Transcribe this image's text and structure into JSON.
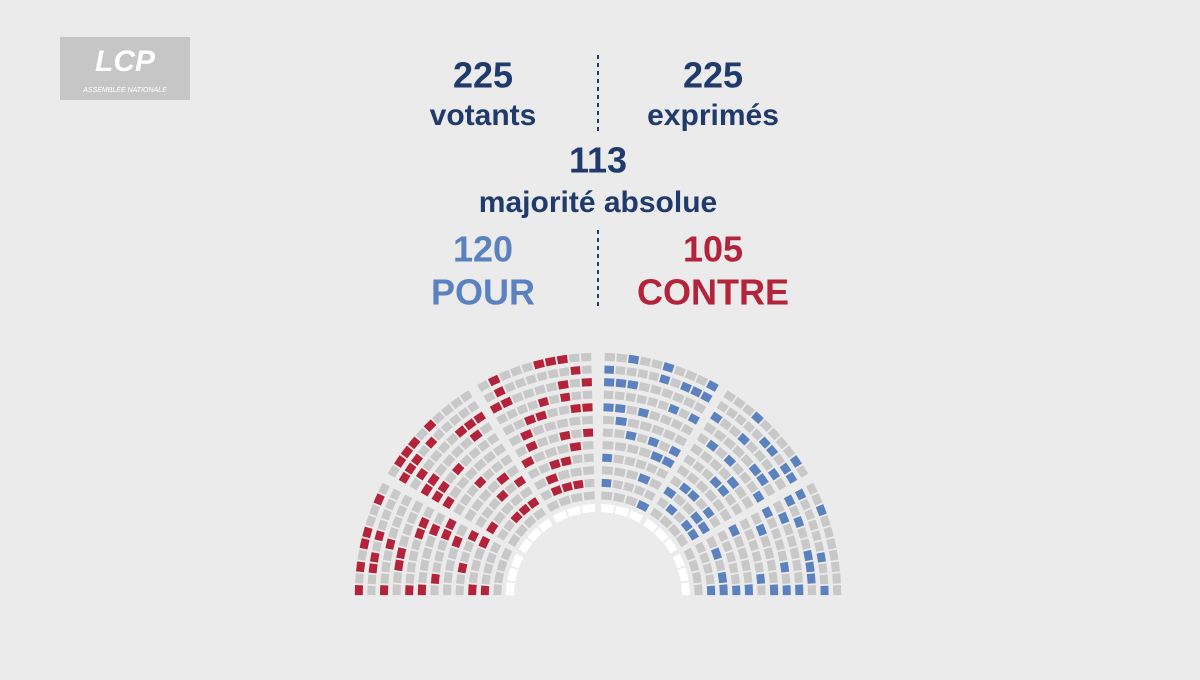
{
  "logo": {
    "name": "LCP",
    "subtitle": "ASSEMBLÉE NATIONALE"
  },
  "votants": {
    "value": 225,
    "label": "votants"
  },
  "exprimes": {
    "value": 225,
    "label": "exprimés"
  },
  "majorite": {
    "value": 113,
    "label": "majorité absolue"
  },
  "pour": {
    "value": 120,
    "label": "POUR"
  },
  "contre": {
    "value": 105,
    "label": "CONTRE"
  }
}
